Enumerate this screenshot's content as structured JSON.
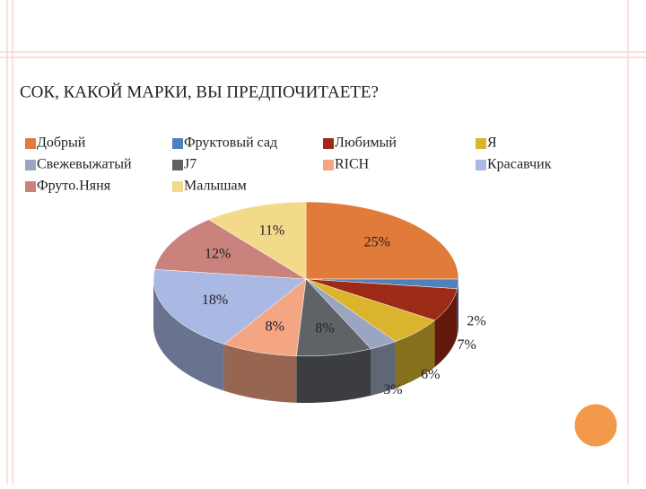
{
  "chart_data": {
    "type": "pie",
    "title": "СОК, КАКОЙ МАРКИ, ВЫ ПРЕДПОЧИТАЕТЕ?",
    "categories": [
      "Добрый",
      "Фруктовый сад",
      "Любимый",
      "Я",
      "Свежевыжатый",
      "J7",
      "RICH",
      "Красавчик",
      "Фруто.Няня",
      "Малышам"
    ],
    "values": [
      25,
      2,
      7,
      6,
      3,
      8,
      8,
      18,
      12,
      11
    ],
    "value_labels": [
      "25%",
      "2%",
      "7%",
      "6%",
      "3%",
      "8%",
      "8%",
      "18%",
      "12%",
      "11%"
    ],
    "colors": [
      "#e07b39",
      "#4f81bd",
      "#9c2a14",
      "#d9b42c",
      "#9aa6bf",
      "#5f6368",
      "#f4a582",
      "#a9b9e4",
      "#c9827c",
      "#f3d98a"
    ]
  }
}
